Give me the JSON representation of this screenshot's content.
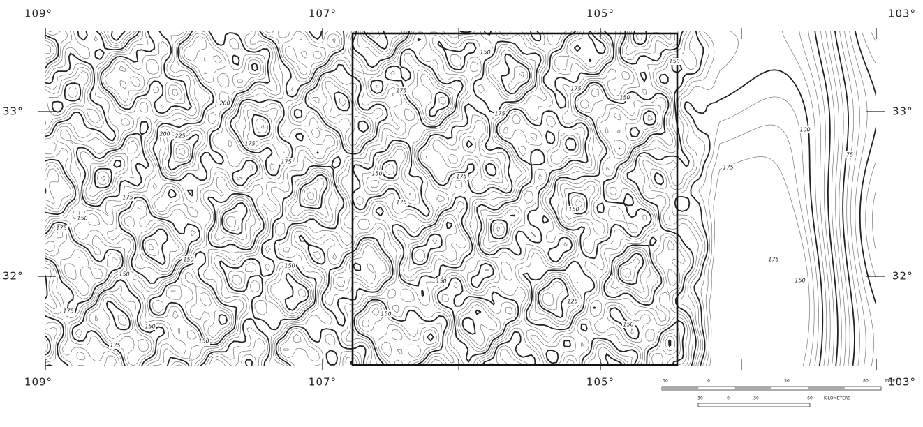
{
  "map": {
    "longitude_labels_top": [
      "109°",
      "107°",
      "105°",
      "103°"
    ],
    "longitude_labels_bottom": [
      "109°",
      "107°",
      "105°",
      "103°"
    ],
    "latitude_labels_left": [
      "33°",
      "32°"
    ],
    "latitude_labels_right": [
      "33°",
      "32°"
    ],
    "contour_labels": [
      "225",
      "200",
      "200",
      "175",
      "175",
      "175",
      "175",
      "150",
      "150",
      "150",
      "150",
      "175",
      "150",
      "150",
      "175",
      "150",
      "175",
      "175",
      "150",
      "175",
      "150",
      "150",
      "175",
      "175",
      "150",
      "150",
      "150",
      "125",
      "150",
      "175",
      "150",
      "175",
      "100",
      "75"
    ],
    "scale": {
      "miles": [
        "50",
        "0",
        "50",
        "80"
      ],
      "miles_unit": "MILES",
      "kilometers": [
        "30",
        "0",
        "30",
        "60"
      ],
      "kilometers_unit": "KILOMETERS"
    }
  }
}
